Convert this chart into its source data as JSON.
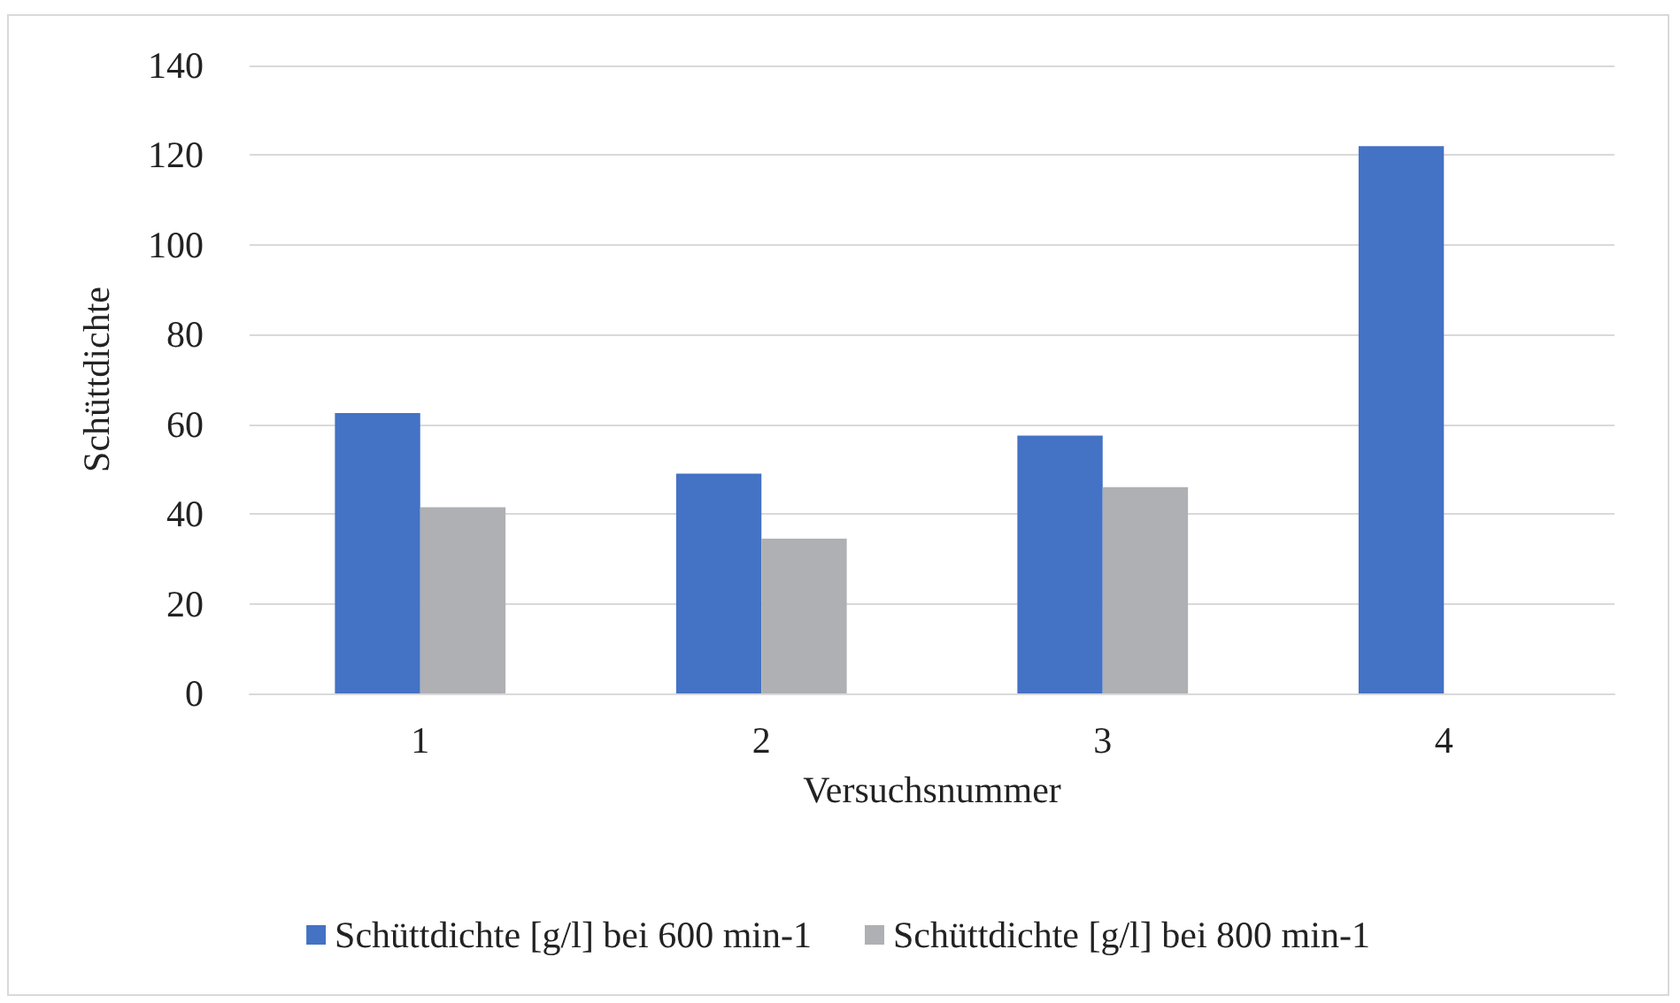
{
  "chart_data": {
    "type": "bar",
    "xlabel": "Versuchsnummer",
    "ylabel": "Schüttdichte",
    "categories": [
      "1",
      "2",
      "3",
      "4"
    ],
    "series": [
      {
        "name": "Schüttdichte [g/l] bei 600 min-1",
        "color": "#4472c4",
        "values": [
          62.5,
          49,
          57.5,
          122
        ]
      },
      {
        "name": "Schüttdichte [g/l] bei 800 min-1",
        "color": "#afb0b3",
        "values": [
          41.5,
          34.5,
          46,
          null
        ]
      }
    ],
    "ylim": [
      0,
      140
    ],
    "yticks": [
      0,
      20,
      40,
      60,
      80,
      100,
      120,
      140
    ],
    "grid": "y",
    "legend": "bottom"
  }
}
